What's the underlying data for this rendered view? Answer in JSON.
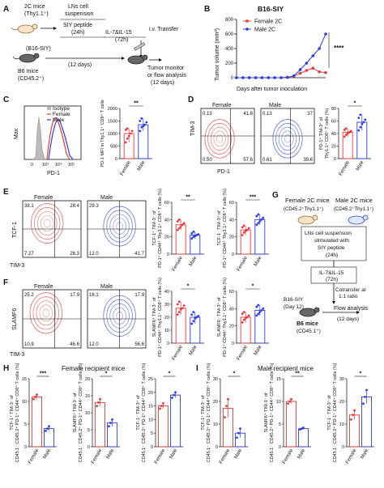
{
  "panel_letters": [
    "A",
    "B",
    "C",
    "D",
    "E",
    "F",
    "G",
    "H",
    "I"
  ],
  "panelA": {
    "donor_mice": "2C mice",
    "donor_sub": "(Thy1.1⁺)",
    "box_title_1": "LNs cell",
    "box_title_2": "suspension",
    "step1": "SIY peptide",
    "step1_dur": "(24h)",
    "step2": "IL-7&IL-15",
    "step2_dur": "(72h)",
    "transfer": "i.v. Transfer",
    "tumor": "(B16-SIY)",
    "host": "B6 mice",
    "host_sub": "(CD45.2⁺)",
    "days12": "(12 days)",
    "monitor": "Tumor monitor",
    "analysis": "or flow analysis",
    "days12b": "(12 days)"
  },
  "panelB": {
    "title": "B16-SIY",
    "stars": "****"
  },
  "panelC": {
    "ylabel": "Max",
    "xlabel": "PD-1",
    "legend": [
      "Isotype",
      "Female",
      "Male"
    ],
    "ticks": [
      "0",
      "10³",
      "10⁴",
      "10⁵"
    ]
  },
  "panelD": {
    "sample_labels": [
      "Female",
      "Male"
    ],
    "xlabel": "PD-1",
    "ylabel": "TIM-3"
  },
  "panelE": {
    "sample_labels": [
      "Female",
      "Male"
    ],
    "xlabel": "TIM-3",
    "ylabel": "TCF-1"
  },
  "panelF": {
    "sample_labels": [
      "Female",
      "Male"
    ],
    "xlabel": "TIM-3",
    "ylabel": "SLAMF6"
  },
  "panelG": {
    "female_mice": "Female 2C mice",
    "female_sub": "(CD45.2⁺Thy1.1⁺)",
    "male_mice": "Male 2C mice",
    "male_sub": "(CD45.2⁺Thy1.1⁺)",
    "step1a": "LNs cell suspension",
    "step1b": "stimulated with",
    "step1c": "SIY peptide",
    "step1d": "(24h)",
    "step2a": "IL-7&IL-15",
    "step2b": "(72h)",
    "cotransfer1": "Cotransfer at",
    "cotransfer2": "1:1 ratio",
    "tumor": "B16-SIY",
    "day": "(Day 12)",
    "host": "B6 mice",
    "host_sub": "(CD45.1⁺)",
    "flow": "Flow analysis",
    "days": "(12 days)"
  },
  "panelH": {
    "title": "Female recipient mice"
  },
  "panelI": {
    "title": "Male recipient mice"
  },
  "chart_data": [
    {
      "id": "B",
      "type": "line",
      "title": "B16-SIY",
      "xlabel": "Days after tumor inoculation",
      "ylabel": "Tumor volume (mm³)",
      "ylim": [
        0,
        800
      ],
      "yticks": [
        0,
        200,
        400,
        600,
        800
      ],
      "x": [
        0,
        2,
        4,
        6,
        8,
        10,
        12,
        14,
        16,
        18,
        20,
        22,
        24,
        26,
        28
      ],
      "series": [
        {
          "name": "Female 2C",
          "color": "#e33b3b",
          "values": [
            0,
            0,
            0,
            0,
            0,
            0,
            0,
            0,
            5,
            20,
            60,
            100,
            130,
            80,
            70
          ]
        },
        {
          "name": "Male 2C",
          "color": "#2f3fd9",
          "values": [
            0,
            0,
            0,
            0,
            0,
            0,
            0,
            0,
            5,
            25,
            110,
            200,
            300,
            400,
            600
          ]
        }
      ],
      "annotation": "****"
    },
    {
      "id": "C-bar",
      "type": "scatter-bar",
      "ylabel": "PD-1 MFI in Thy1.1⁺ CD8⁺ T cells",
      "ylim": [
        0,
        2000
      ],
      "yticks": [
        "0",
        "500",
        "1000",
        "1500",
        "2000"
      ],
      "categories": [
        "Female",
        "Male"
      ],
      "means": [
        1000,
        1350
      ],
      "points": [
        [
          650,
          800,
          900,
          1000,
          1100,
          1150,
          1200
        ],
        [
          1100,
          1250,
          1300,
          1350,
          1450,
          1500,
          1600
        ]
      ],
      "sig": "**"
    },
    {
      "id": "D-bar",
      "type": "scatter-bar",
      "ylabel": "PD-1⁺ TIM-3⁺ of Thy1.1⁺ CD8⁺ T cells (%)",
      "ylim": [
        0,
        80
      ],
      "yticks": [
        "0",
        "20",
        "40",
        "60",
        "80"
      ],
      "categories": [
        "Female",
        "Male"
      ],
      "means": [
        42,
        58
      ],
      "points": [
        [
          35,
          38,
          40,
          42,
          44,
          46,
          48
        ],
        [
          45,
          50,
          55,
          58,
          62,
          65,
          70
        ]
      ],
      "sig": "*"
    },
    {
      "id": "E-bar1",
      "type": "scatter-bar",
      "ylabel": "TCF-1⁺ TIM-3⁻ of PD-1⁺ CD44⁺ Thy1.1⁺ CD8⁺ T cells (%)",
      "ylim": [
        0,
        60
      ],
      "yticks": [
        "0",
        "20",
        "40",
        "60"
      ],
      "categories": [
        "Female",
        "Male"
      ],
      "means": [
        34,
        22
      ],
      "points": [
        [
          28,
          30,
          32,
          34,
          36,
          38,
          40
        ],
        [
          18,
          20,
          21,
          22,
          23,
          24,
          26
        ]
      ],
      "sig": "**"
    },
    {
      "id": "E-bar2",
      "type": "scatter-bar",
      "ylabel": "TCF-1⁻ TIM-3⁺ of PD-1⁺ CD44⁺ Thy1.1⁺ CD8⁺ T cells (%)",
      "ylim": [
        0,
        60
      ],
      "yticks": [
        "0",
        "20",
        "40",
        "60"
      ],
      "categories": [
        "Female",
        "Male"
      ],
      "means": [
        28,
        40
      ],
      "points": [
        [
          22,
          25,
          27,
          28,
          30,
          31,
          33
        ],
        [
          34,
          36,
          38,
          40,
          42,
          44,
          46
        ]
      ],
      "sig": "***"
    },
    {
      "id": "F-bar1",
      "type": "scatter-bar",
      "ylabel": "SLAMF6⁺ TIM-3⁻ of PD-1⁺ CD44⁺ Thy1.1⁺ CD8⁺ T cells (%)",
      "ylim": [
        0,
        40
      ],
      "yticks": [
        "0",
        "10",
        "20",
        "30",
        "40"
      ],
      "categories": [
        "Female",
        "Male"
      ],
      "means": [
        27,
        20
      ],
      "points": [
        [
          22,
          24,
          26,
          27,
          29,
          30,
          32
        ],
        [
          15,
          17,
          19,
          20,
          21,
          22,
          24
        ]
      ],
      "sig": "*"
    },
    {
      "id": "F-bar2",
      "type": "scatter-bar",
      "ylabel": "SLAMF6⁻ TIM-3⁺ of PD-1⁺ CD44⁺ Thy1.1⁺ CD8⁺ T cells (%)",
      "ylim": [
        0,
        60
      ],
      "yticks": [
        "0",
        "20",
        "40",
        "60"
      ],
      "categories": [
        "Female",
        "Male"
      ],
      "means": [
        30,
        38
      ],
      "points": [
        [
          24,
          27,
          29,
          30,
          32,
          34,
          36
        ],
        [
          32,
          34,
          36,
          38,
          40,
          42,
          44
        ]
      ],
      "sig": "*"
    },
    {
      "id": "H-bar1",
      "type": "scatter-bar",
      "ylabel": "TCF-1⁺ TIM-3⁻ of CD45.1⁻ CD45.2⁺ PD-1⁺ CD44⁺ CD8⁺ T cells (%)",
      "ylim": [
        0,
        15
      ],
      "yticks": [
        "0",
        "5",
        "10",
        "15"
      ],
      "categories": [
        "Female",
        "Male"
      ],
      "means": [
        11,
        4
      ],
      "points": [
        [
          10.5,
          11,
          11.5
        ],
        [
          3.5,
          4,
          4.5
        ]
      ],
      "sig": "***"
    },
    {
      "id": "H-bar2",
      "type": "scatter-bar",
      "ylabel": "SLAMF6⁺ TIM-3⁻ of CD45.1⁻ CD45.2⁺ PD-1⁺ CD44⁺ CD8⁺ T cells (%)",
      "ylim": [
        0,
        20
      ],
      "yticks": [
        "0",
        "5",
        "10",
        "15",
        "20"
      ],
      "categories": [
        "Female",
        "Male"
      ],
      "means": [
        13,
        7
      ],
      "points": [
        [
          12,
          13,
          14
        ],
        [
          6,
          7,
          8
        ]
      ],
      "sig": "*"
    },
    {
      "id": "H-bar3",
      "type": "scatter-bar",
      "ylabel": "TCF-1⁻ TIM-3⁺ of CD45.1⁻ CD45.2⁺ PD-1⁺ CD44⁺ CD8⁺ T cells (%)",
      "ylim": [
        0,
        25
      ],
      "yticks": [
        "0",
        "5",
        "10",
        "15",
        "20",
        "25"
      ],
      "categories": [
        "Female",
        "Male"
      ],
      "means": [
        15,
        19
      ],
      "points": [
        [
          14,
          15,
          16
        ],
        [
          18,
          19,
          20
        ]
      ],
      "sig": "*"
    },
    {
      "id": "I-bar1",
      "type": "scatter-bar",
      "ylabel": "TCF-1⁺ TIM-3⁻ of CD45.1⁻ CD45.2⁺ PD-1⁺ CD44⁺ CD8⁺ T cells (%)",
      "ylim": [
        0,
        30
      ],
      "yticks": [
        "0",
        "10",
        "20",
        "30"
      ],
      "categories": [
        "Female",
        "Male"
      ],
      "means": [
        17,
        6
      ],
      "points": [
        [
          13,
          18,
          21
        ],
        [
          4,
          6,
          8
        ]
      ],
      "sig": "*"
    },
    {
      "id": "I-bar2",
      "type": "scatter-bar",
      "ylabel": "SLAMF6⁺ TIM-3⁻ of CD45.1⁻ CD45.2⁺ PD-1⁺ CD44⁺ CD8⁺ T cells (%)",
      "ylim": [
        0,
        15
      ],
      "yticks": [
        "0",
        "5",
        "10",
        "15"
      ],
      "categories": [
        "Female",
        "Male"
      ],
      "means": [
        10,
        4
      ],
      "points": [
        [
          9.5,
          10,
          10.5
        ],
        [
          3.8,
          4,
          4.2
        ]
      ],
      "sig": "**"
    },
    {
      "id": "I-bar3",
      "type": "scatter-bar",
      "ylabel": "TCF-1⁻ TIM-3⁺ of CD45.1⁻ CD45.2⁺ PD-1⁺ CD44⁺ CD8⁺ T cells (%)",
      "ylim": [
        0,
        30
      ],
      "yticks": [
        "0",
        "10",
        "20",
        "30"
      ],
      "categories": [
        "Female",
        "Male"
      ],
      "means": [
        14,
        22
      ],
      "points": [
        [
          12,
          14,
          16
        ],
        [
          19,
          22,
          25
        ]
      ],
      "sig": "*"
    }
  ],
  "flow_plots": [
    {
      "id": "D-F",
      "color": "#e33b3b",
      "q": [
        "0.13",
        "41.8",
        "0.50",
        "57.6"
      ]
    },
    {
      "id": "D-M",
      "color": "#2f3fd9",
      "q": [
        "0.13",
        "37",
        "0.61",
        "39.6"
      ]
    },
    {
      "id": "E-F",
      "color": "#e33b3b",
      "q": [
        "38.1",
        "28.4",
        "7.27",
        "26.3"
      ]
    },
    {
      "id": "E-M",
      "color": "#2f3fd9",
      "q": [
        "29.3",
        "",
        "12.0",
        "41.7"
      ]
    },
    {
      "id": "F-F",
      "color": "#e33b3b",
      "q": [
        "25.2",
        "17.9",
        "10.9",
        "46.6"
      ]
    },
    {
      "id": "F-M",
      "color": "#2f3fd9",
      "q": [
        "16.1",
        "17.9",
        "12.0",
        "56.6"
      ]
    }
  ]
}
